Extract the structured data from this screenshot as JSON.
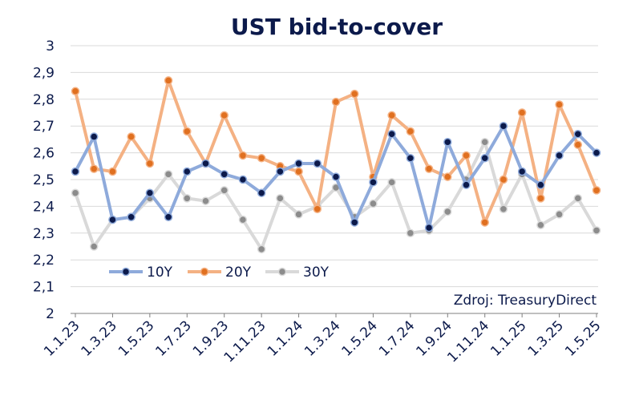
{
  "chart_data": {
    "type": "line",
    "title": "UST bid-to-cover",
    "xlabel": "",
    "ylabel": "",
    "ylim": [
      2,
      3
    ],
    "yticks": [
      "2",
      "2,1",
      "2,2",
      "2,3",
      "2,4",
      "2,5",
      "2,6",
      "2,7",
      "2,8",
      "2,9",
      "3"
    ],
    "x_tick_labels": [
      "1.1.23",
      "1.3.23",
      "1.5.23",
      "1.7.23",
      "1.9.23",
      "1.11.23",
      "1.1.24",
      "1.3.24",
      "1.5.24",
      "1.7.24",
      "1.9.24",
      "1.11.24",
      "1.1.25",
      "1.3.25",
      "1.5.25"
    ],
    "grid": "horizontal",
    "legend_position": "bottom-left",
    "source_note": "Zdroj: TreasuryDirect",
    "series": [
      {
        "name": "10Y",
        "color": "#8eaadb",
        "marker_color": "#0c1a4b",
        "values": [
          2.53,
          2.66,
          2.35,
          2.36,
          2.45,
          2.36,
          2.53,
          2.56,
          2.52,
          2.5,
          2.45,
          2.53,
          2.56,
          2.56,
          2.51,
          2.34,
          2.49,
          2.67,
          2.58,
          2.32,
          2.64,
          2.48,
          2.58,
          2.7,
          2.53,
          2.48,
          2.59,
          2.67,
          2.6
        ]
      },
      {
        "name": "20Y",
        "color": "#f4b183",
        "marker_color": "#e07020",
        "values": [
          2.83,
          2.54,
          2.53,
          2.66,
          2.56,
          2.87,
          2.68,
          2.56,
          2.74,
          2.59,
          2.58,
          2.55,
          2.53,
          2.39,
          2.79,
          2.82,
          2.51,
          2.74,
          2.68,
          2.54,
          2.51,
          2.59,
          2.34,
          2.5,
          2.75,
          2.43,
          2.78,
          2.63,
          2.46
        ]
      },
      {
        "name": "30Y",
        "color": "#d9d9d9",
        "marker_color": "#8c8c8c",
        "values": [
          2.45,
          2.25,
          2.35,
          2.36,
          2.43,
          2.52,
          2.43,
          2.42,
          2.46,
          2.35,
          2.24,
          2.43,
          2.37,
          2.4,
          2.47,
          2.36,
          2.41,
          2.49,
          2.3,
          2.31,
          2.38,
          2.5,
          2.64,
          2.39,
          2.52,
          2.33,
          2.37,
          2.43,
          2.31
        ]
      }
    ]
  }
}
